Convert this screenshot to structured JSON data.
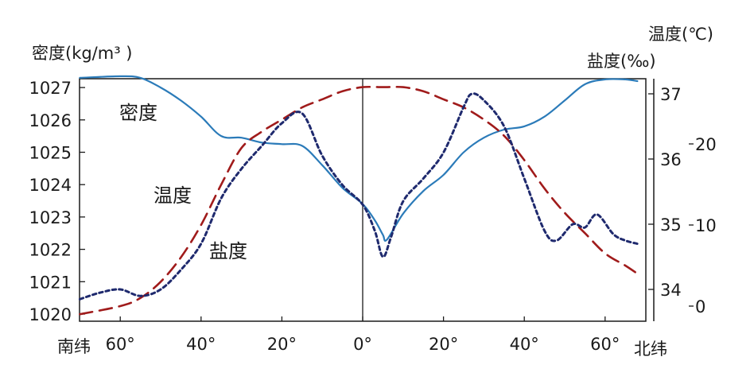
{
  "chart_data": {
    "type": "line",
    "x_axis": {
      "ticks": [
        -60,
        -40,
        -20,
        0,
        20,
        40,
        60
      ],
      "tick_labels": [
        "60°",
        "40°",
        "20°",
        "0°",
        "20°",
        "40°",
        "60°"
      ],
      "left_end_label": "南纬",
      "right_end_label": "北纬",
      "range": [
        -70,
        70
      ]
    },
    "y_density": {
      "title": "密度(kg/m³ )",
      "ticks": [
        1020,
        1021,
        1022,
        1023,
        1024,
        1025,
        1026,
        1027
      ],
      "tick_labels": [
        "1020",
        "1021",
        "1022",
        "1023",
        "1024",
        "1025",
        "1026",
        "1027"
      ]
    },
    "y_salinity": {
      "title": "盐度(‰)",
      "ticks": [
        34,
        35,
        36,
        37
      ],
      "tick_labels": [
        "34",
        "35",
        "36",
        "37"
      ]
    },
    "y_temperature": {
      "title": "温度(℃)",
      "ticks": [
        0,
        10,
        20
      ],
      "tick_labels": [
        "0",
        "10",
        "20"
      ]
    },
    "series": [
      {
        "name": "密度",
        "axis": "density",
        "style": "solid",
        "color": "#2b7bb9",
        "x": [
          -70,
          -60,
          -55,
          -50,
          -45,
          -40,
          -35,
          -30,
          -25,
          -20,
          -15,
          -10,
          -5,
          0,
          3,
          5,
          6,
          10,
          15,
          20,
          25,
          30,
          35,
          40,
          45,
          50,
          55,
          60,
          65,
          68
        ],
        "y": [
          1027.3,
          1027.35,
          1027.3,
          1027.0,
          1026.6,
          1026.1,
          1025.5,
          1025.45,
          1025.3,
          1025.25,
          1025.2,
          1024.6,
          1023.9,
          1023.4,
          1022.9,
          1022.45,
          1022.3,
          1023.1,
          1023.8,
          1024.3,
          1025.0,
          1025.45,
          1025.7,
          1025.8,
          1026.1,
          1026.6,
          1027.1,
          1027.25,
          1027.25,
          1027.2
        ]
      },
      {
        "name": "温度",
        "axis": "temperature",
        "style": "dashed",
        "color": "#a01b1b",
        "x": [
          -70,
          -60,
          -55,
          -50,
          -45,
          -40,
          -35,
          -30,
          -25,
          -20,
          -15,
          -10,
          -5,
          0,
          5,
          10,
          15,
          20,
          25,
          30,
          35,
          40,
          45,
          50,
          55,
          60,
          65,
          68
        ],
        "y": [
          -1,
          0,
          1,
          3,
          6,
          10,
          15,
          19.5,
          21.5,
          23,
          24.5,
          25.5,
          26.5,
          27,
          27,
          27,
          26.5,
          25.5,
          24.5,
          23,
          21,
          18,
          14.5,
          11.5,
          9,
          6.5,
          5,
          4
        ]
      },
      {
        "name": "盐度",
        "axis": "salinity",
        "style": "dotted",
        "color": "#1f2a6e",
        "x": [
          -70,
          -65,
          -60,
          -55,
          -50,
          -45,
          -40,
          -35,
          -30,
          -25,
          -20,
          -15,
          -10,
          -5,
          0,
          3,
          5,
          7,
          10,
          15,
          20,
          25,
          27,
          30,
          35,
          40,
          45,
          48,
          52,
          55,
          58,
          62,
          65,
          68
        ],
        "y": [
          33.85,
          33.95,
          34.0,
          33.9,
          34.0,
          34.3,
          34.7,
          35.4,
          35.85,
          36.2,
          36.55,
          36.7,
          36.05,
          35.6,
          35.3,
          34.9,
          34.5,
          34.8,
          35.35,
          35.7,
          36.1,
          36.8,
          37.0,
          36.9,
          36.5,
          35.7,
          34.9,
          34.75,
          35.0,
          34.95,
          35.15,
          34.85,
          34.75,
          34.7
        ]
      }
    ],
    "annotations": [
      {
        "text": "密度",
        "series": "密度"
      },
      {
        "text": "温度",
        "series": "温度"
      },
      {
        "text": "盐度",
        "series": "盐度"
      }
    ],
    "reference_line_x": 0,
    "grid": false
  }
}
